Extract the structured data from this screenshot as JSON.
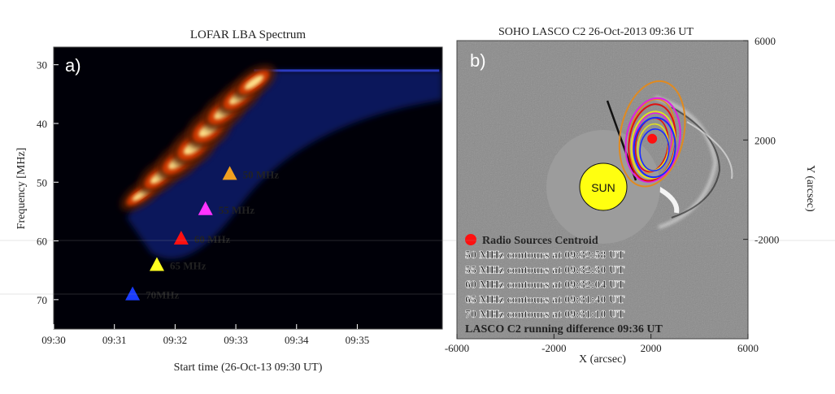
{
  "chart_data": [
    {
      "type": "heatmap",
      "panel_label": "a)",
      "title": "LOFAR LBA Spectrum",
      "ylabel": "Frequency [MHz]",
      "xlabel": "Start time (26-Oct-13 09:30 UT)",
      "x_ticks": [
        "09:30",
        "09:31",
        "09:32",
        "09:33",
        "09:34",
        "09:35"
      ],
      "y_ticks": [
        "30",
        "40",
        "50",
        "60",
        "70"
      ],
      "xlim_minutes": [
        0,
        6.4
      ],
      "ylim_mhz": [
        75,
        27
      ],
      "burst_ridge": [
        {
          "t": 1.45,
          "f": 52,
          "w": 2.2
        },
        {
          "t": 1.75,
          "f": 49,
          "w": 2.8
        },
        {
          "t": 2.05,
          "f": 46.5,
          "w": 3.2
        },
        {
          "t": 2.3,
          "f": 44,
          "w": 3.5
        },
        {
          "t": 2.55,
          "f": 41,
          "w": 3.5
        },
        {
          "t": 2.8,
          "f": 38,
          "w": 3.2
        },
        {
          "t": 3.05,
          "f": 35.5,
          "w": 3.0
        },
        {
          "t": 3.3,
          "f": 33,
          "w": 2.6
        }
      ],
      "markers": [
        {
          "t": 2.9,
          "f": 48.5,
          "label": "50 MHz",
          "color": "#f0a020"
        },
        {
          "t": 2.5,
          "f": 54.5,
          "label": "55 MHz",
          "color": "#ff33ff"
        },
        {
          "t": 2.1,
          "f": 59.5,
          "label": "60 MHz",
          "color": "#ff1010"
        },
        {
          "t": 1.7,
          "f": 64,
          "label": "65 MHz",
          "color": "#ffff20"
        },
        {
          "t": 1.3,
          "f": 69,
          "label": "70MHz",
          "color": "#1a3cff"
        }
      ]
    },
    {
      "type": "scatter",
      "panel_label": "b)",
      "title": "SOHO LASCO C2 26-Oct-2013 09:36 UT",
      "xlabel": "X (arcsec)",
      "ylabel": "Y (arcsec)",
      "x_ticks": [
        "-6000",
        "-2000",
        "2000",
        "6000"
      ],
      "y_ticks": [
        "6000",
        "2000",
        "-2000"
      ],
      "xlim": [
        -6000,
        6000
      ],
      "ylim": [
        -6000,
        6000
      ],
      "sun_label": "SUN",
      "centroid": {
        "x": 2050,
        "y": 2050
      },
      "contours": [
        {
          "label": "50 MHz",
          "color": "#e08a20",
          "cx": 2050,
          "cy": 2250,
          "rx": 1300,
          "ry": 2150,
          "rot": 12
        },
        {
          "label": "55 MHz",
          "color": "#e020e0",
          "cx": 2080,
          "cy": 2000,
          "rx": 1100,
          "ry": 1700,
          "rot": 10
        },
        {
          "label": "60 MHz",
          "color": "#e01010",
          "cx": 2050,
          "cy": 1900,
          "rx": 950,
          "ry": 1550,
          "rot": 8
        },
        {
          "label": "65 MHz",
          "color": "#e0e020",
          "cx": 2100,
          "cy": 1800,
          "rx": 900,
          "ry": 1350,
          "rot": 6
        },
        {
          "label": "70 MHz",
          "color": "#1a2cff",
          "cx": 2150,
          "cy": 1700,
          "rx": 850,
          "ry": 1200,
          "rot": 4
        }
      ],
      "legend": [
        {
          "text": "Radio Sources Centroid",
          "color": "#111111"
        },
        {
          "text": "50 MHz contours at 09:32:58 UT",
          "color": "#f0a020"
        },
        {
          "text": "55 MHz contours at 09:32:30 UT",
          "color": "#ff33ff"
        },
        {
          "text": "60 MHz contours at 09:32:04 UT",
          "color": "#ff1010"
        },
        {
          "text": "65 MHz contours at 09:31:40 UT",
          "color": "#ffff20"
        },
        {
          "text": "70 MHz contours at 09:31:10 UT",
          "color": "#1a3cff"
        },
        {
          "text": "LASCO C2 running difference 09:36 UT",
          "color": "#ffffff"
        }
      ]
    }
  ]
}
